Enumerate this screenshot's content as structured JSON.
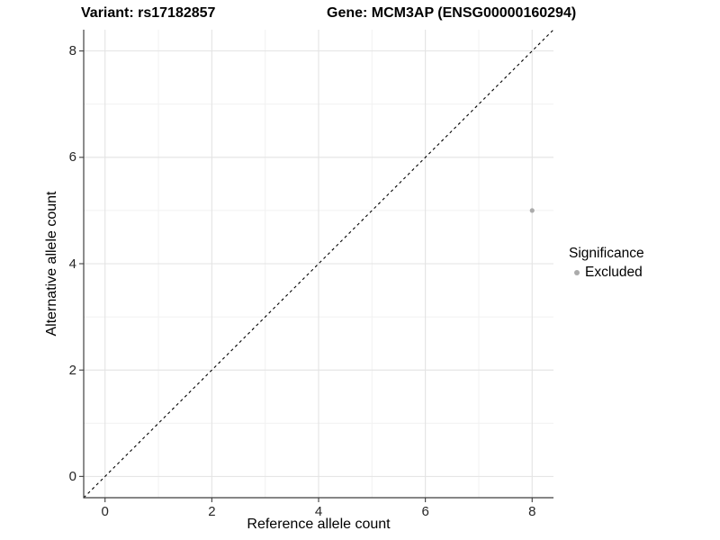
{
  "header": {
    "variant_title": "Variant: rs17182857",
    "gene_title": "Gene: MCM3AP (ENSG00000160294)"
  },
  "legend": {
    "title": "Significance",
    "items": [
      {
        "label": "Excluded",
        "color": "#ababab"
      }
    ]
  },
  "chart_data": {
    "type": "scatter",
    "title": "Variant: rs17182857 / Gene: MCM3AP (ENSG00000160294)",
    "xlabel": "Reference allele count",
    "ylabel": "Alternative allele count",
    "xlim": [
      -0.4,
      8.4
    ],
    "ylim": [
      -0.4,
      8.4
    ],
    "xticks": [
      0,
      2,
      4,
      6,
      8
    ],
    "yticks": [
      0,
      2,
      4,
      6,
      8
    ],
    "minor_ticks_x": [
      1,
      3,
      5,
      7
    ],
    "minor_ticks_y": [
      1,
      3,
      5,
      7
    ],
    "grid": true,
    "legend_position": "right",
    "identity_line": {
      "slope": 1,
      "intercept": 0,
      "style": "dashed",
      "color": "#000000"
    },
    "series": [
      {
        "name": "Excluded",
        "color": "#ababab",
        "points": [
          {
            "x": 8,
            "y": 5
          }
        ]
      }
    ],
    "colors": {
      "grid_major": "#e3e3e3",
      "grid_minor": "#f1f1f1",
      "axis_line": "#3f3f3f",
      "point": "#ababab",
      "dashed_line": "#000000"
    }
  }
}
